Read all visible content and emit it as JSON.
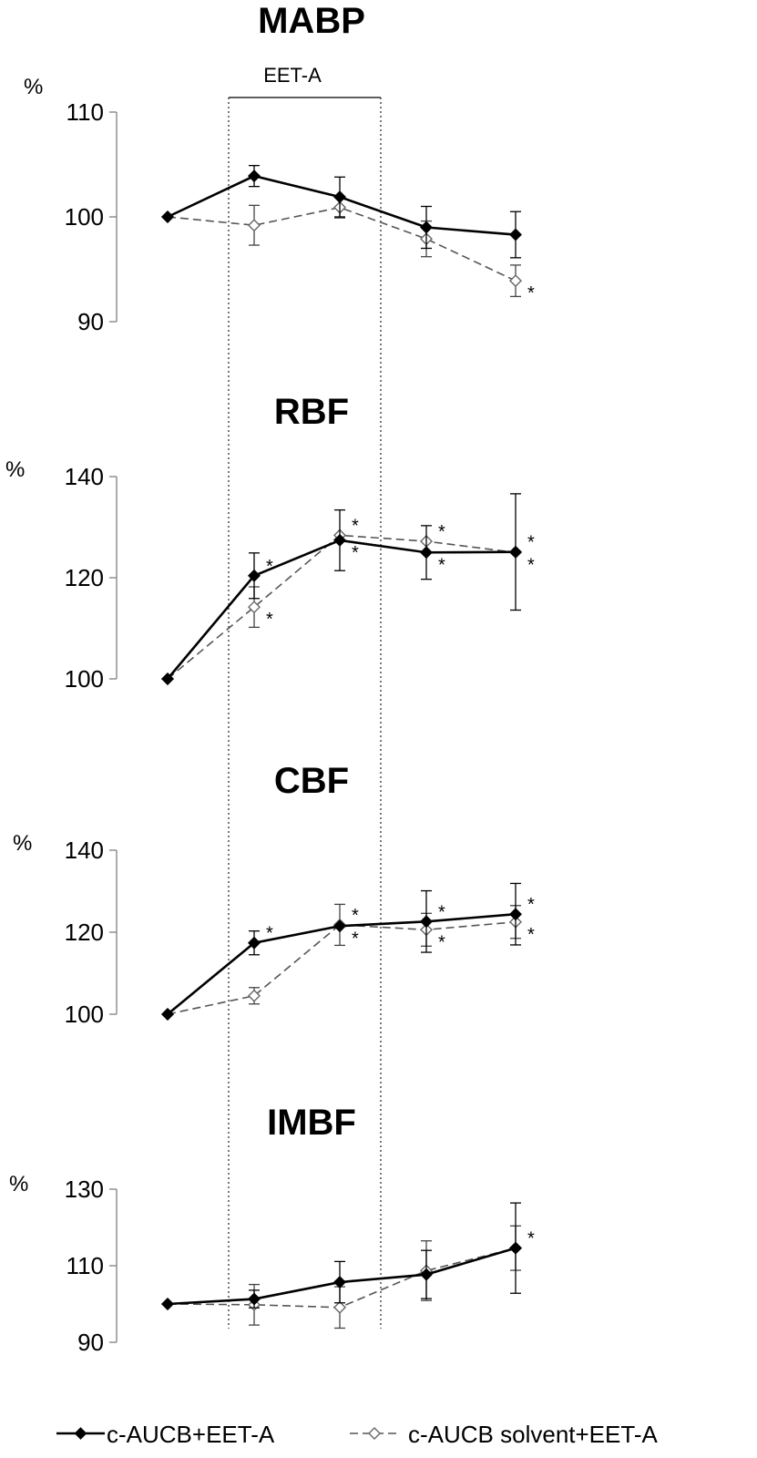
{
  "legend": {
    "series1": "c-AUCB+EET-A",
    "series2": "c-AUCB solvent+EET-A"
  },
  "shade_label": "EET-A",
  "unit_label": "%",
  "colors": {
    "series1": "#000000",
    "series2": "#555555",
    "axis": "#808080"
  },
  "chart_data": [
    {
      "type": "line",
      "title": "MABP",
      "ylabel": "%",
      "ylim": [
        90,
        110
      ],
      "yticks": [
        90,
        100,
        110
      ],
      "x": [
        0,
        1,
        2,
        3,
        4
      ],
      "series": [
        {
          "name": "c-AUCB+EET-A",
          "values": [
            100,
            103.9,
            101.9,
            99.0,
            98.3
          ],
          "errors": [
            0,
            1.0,
            1.9,
            2.0,
            2.2
          ],
          "stars": []
        },
        {
          "name": "c-AUCB solvent+EET-A",
          "values": [
            100,
            99.2,
            100.9,
            97.9,
            93.9
          ],
          "errors": [
            0,
            1.9,
            1.0,
            1.7,
            1.5
          ],
          "stars": [
            4
          ]
        }
      ]
    },
    {
      "type": "line",
      "title": "RBF",
      "ylabel": "%",
      "ylim": [
        100,
        140
      ],
      "yticks": [
        100,
        120,
        140
      ],
      "x": [
        0,
        1,
        2,
        3,
        4
      ],
      "series": [
        {
          "name": "c-AUCB+EET-A",
          "values": [
            100,
            120.4,
            127.4,
            125.0,
            125.1
          ],
          "errors": [
            0,
            4.5,
            6.0,
            5.3,
            11.5
          ],
          "stars": [
            1,
            2,
            3,
            4
          ]
        },
        {
          "name": "c-AUCB solvent+EET-A",
          "values": [
            100,
            114.2,
            128.4,
            127.2,
            125.0
          ],
          "errors": [
            0,
            4.0,
            0,
            0,
            0
          ],
          "stars": [
            1,
            2,
            3,
            4
          ]
        }
      ]
    },
    {
      "type": "line",
      "title": "CBF",
      "ylabel": "%",
      "ylim": [
        100,
        140
      ],
      "yticks": [
        100,
        120,
        140
      ],
      "x": [
        0,
        1,
        2,
        3,
        4
      ],
      "series": [
        {
          "name": "c-AUCB+EET-A",
          "values": [
            100,
            117.4,
            121.5,
            122.6,
            124.4
          ],
          "errors": [
            0,
            2.9,
            0,
            7.5,
            7.5
          ],
          "stars": [
            1,
            2,
            3,
            4
          ]
        },
        {
          "name": "c-AUCB solvent+EET-A",
          "values": [
            100,
            104.5,
            121.8,
            120.6,
            122.5
          ],
          "errors": [
            0,
            2.0,
            5.0,
            4.0,
            4.0
          ],
          "stars": [
            2,
            3,
            4
          ]
        }
      ]
    },
    {
      "type": "line",
      "title": "IMBF",
      "ylabel": "%",
      "ylim": [
        90,
        130
      ],
      "yticks": [
        90,
        110,
        130
      ],
      "x": [
        0,
        1,
        2,
        3,
        4
      ],
      "series": [
        {
          "name": "c-AUCB+EET-A",
          "values": [
            100,
            101.3,
            105.7,
            107.7,
            114.6
          ],
          "errors": [
            0,
            2.3,
            5.4,
            6.3,
            11.8
          ],
          "stars": []
        },
        {
          "name": "c-AUCB solvent+EET-A",
          "values": [
            100,
            99.8,
            99.1,
            108.7,
            114.6
          ],
          "errors": [
            0,
            5.3,
            5.4,
            7.8,
            5.8
          ],
          "stars": [
            4
          ]
        }
      ]
    }
  ]
}
